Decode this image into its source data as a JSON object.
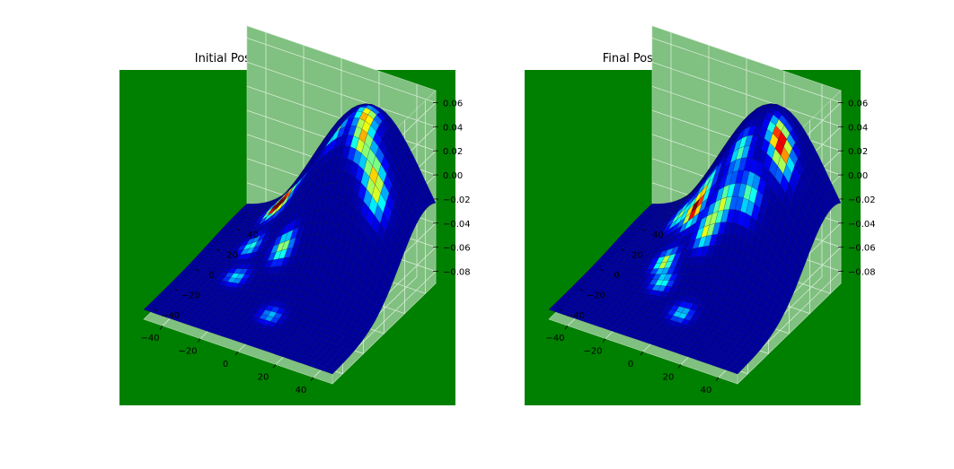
{
  "chart_data": [
    {
      "type": "surface3d",
      "title": "Initial Positions",
      "xlabel": "",
      "ylabel": "",
      "zlabel": "",
      "x_ticks": [
        "−40",
        "−20",
        "0",
        "20",
        "40"
      ],
      "y_ticks": [
        "−40",
        "−20",
        "0",
        "20",
        "40"
      ],
      "z_ticks": [
        "0.06",
        "0.04",
        "0.02",
        "0.00",
        "−0.02",
        "−0.04",
        "−0.06",
        "−0.08"
      ],
      "xlim": [
        -50,
        50
      ],
      "ylim": [
        -50,
        50
      ],
      "zlim": [
        -0.09,
        0.07
      ],
      "colormap": "jet",
      "grid": true,
      "colors": {
        "figure_background": "#008000",
        "pane": "#80c080",
        "surface_base": "#00007f"
      },
      "surface": "smooth gaussian hill peaking near the back-right corner, dark blue base with localized jet-colored hot spots",
      "hot_spots": [
        {
          "x": -24,
          "y": 30,
          "intensity": 1.0
        },
        {
          "x": -18,
          "y": 28,
          "intensity": 0.8
        },
        {
          "x": -10,
          "y": 32,
          "intensity": 0.45
        },
        {
          "x": 6,
          "y": 34,
          "intensity": 0.55
        },
        {
          "x": 20,
          "y": 38,
          "intensity": 0.7
        },
        {
          "x": 22,
          "y": 30,
          "intensity": 0.65
        },
        {
          "x": 30,
          "y": 26,
          "intensity": 0.5
        },
        {
          "x": 34,
          "y": 22,
          "intensity": 0.45
        },
        {
          "x": -26,
          "y": 10,
          "intensity": 0.4
        },
        {
          "x": -6,
          "y": 4,
          "intensity": 0.55
        },
        {
          "x": -24,
          "y": -8,
          "intensity": 0.35
        },
        {
          "x": 4,
          "y": -26,
          "intensity": 0.3
        }
      ]
    },
    {
      "type": "surface3d",
      "title": "Final Positions",
      "xlabel": "",
      "ylabel": "",
      "zlabel": "",
      "x_ticks": [
        "−40",
        "−20",
        "0",
        "20",
        "40"
      ],
      "y_ticks": [
        "−40",
        "−20",
        "0",
        "20",
        "40"
      ],
      "z_ticks": [
        "0.06",
        "0.04",
        "0.02",
        "0.00",
        "−0.02",
        "−0.04",
        "−0.06",
        "−0.08"
      ],
      "xlim": [
        -50,
        50
      ],
      "ylim": [
        -50,
        50
      ],
      "zlim": [
        -0.09,
        0.07
      ],
      "colormap": "jet",
      "grid": true,
      "colors": {
        "figure_background": "#008000",
        "pane": "#80c080",
        "surface_base": "#00007f"
      },
      "surface": "smooth gaussian hill peaking near the back-right corner, dark blue base with localized jet-colored hot spots",
      "hot_spots": [
        {
          "x": -10,
          "y": 18,
          "intensity": 1.0
        },
        {
          "x": -20,
          "y": 22,
          "intensity": 0.5
        },
        {
          "x": -6,
          "y": 24,
          "intensity": 0.4
        },
        {
          "x": 10,
          "y": 26,
          "intensity": 0.45
        },
        {
          "x": 26,
          "y": 34,
          "intensity": 0.75
        },
        {
          "x": 30,
          "y": 30,
          "intensity": 0.6
        },
        {
          "x": 8,
          "y": 14,
          "intensity": 0.55
        },
        {
          "x": 2,
          "y": 8,
          "intensity": 0.6
        },
        {
          "x": -16,
          "y": 0,
          "intensity": 0.6
        },
        {
          "x": 20,
          "y": 16,
          "intensity": 0.45
        },
        {
          "x": -12,
          "y": -10,
          "intensity": 0.4
        },
        {
          "x": 6,
          "y": -24,
          "intensity": 0.35
        }
      ]
    }
  ]
}
